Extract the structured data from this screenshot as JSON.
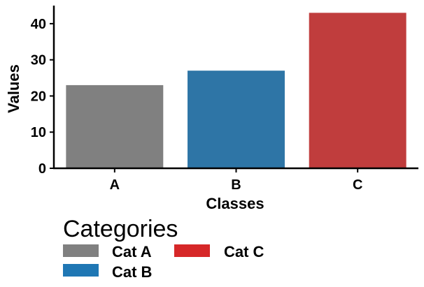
{
  "chart_data": {
    "type": "bar",
    "categories": [
      "A",
      "B",
      "C"
    ],
    "values": [
      23,
      27,
      43
    ],
    "colors": [
      "#808080",
      "#2e75a6",
      "#c03d3d"
    ],
    "xlabel": "Classes",
    "ylabel": "Values",
    "ylim": [
      0,
      45
    ],
    "yticks": [
      0,
      10,
      20,
      30,
      40
    ],
    "grid": false,
    "legend": {
      "title": "Categories",
      "placement": "bottom-left",
      "entries": [
        {
          "label": "Cat A",
          "color": "#808080"
        },
        {
          "label": "Cat B",
          "color": "#1f77b4"
        },
        {
          "label": "Cat C",
          "color": "#d62728"
        }
      ]
    }
  }
}
